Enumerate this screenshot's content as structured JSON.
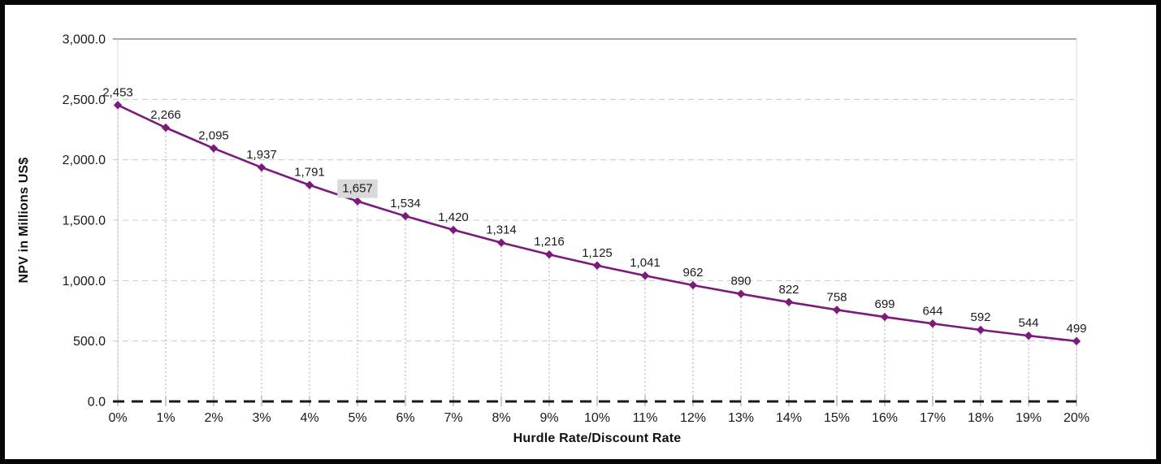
{
  "chart_data": {
    "type": "line",
    "title": "",
    "xlabel": "Hurdle Rate/Discount Rate",
    "ylabel": "NPV in Millions US$",
    "categories": [
      "0%",
      "1%",
      "2%",
      "3%",
      "4%",
      "5%",
      "6%",
      "7%",
      "8%",
      "9%",
      "10%",
      "11%",
      "12%",
      "13%",
      "14%",
      "15%",
      "16%",
      "17%",
      "18%",
      "19%",
      "20%"
    ],
    "values": [
      2453,
      2266,
      2095,
      1937,
      1791,
      1657,
      1534,
      1420,
      1314,
      1216,
      1125,
      1041,
      962,
      890,
      822,
      758,
      699,
      644,
      592,
      544,
      499
    ],
    "point_labels": [
      "2,453",
      "2,266",
      "2,095",
      "1,937",
      "1,791",
      "1,657",
      "1,534",
      "1,420",
      "1,314",
      "1,216",
      "1,125",
      "1,041",
      "962",
      "890",
      "822",
      "758",
      "699",
      "644",
      "592",
      "544",
      "499"
    ],
    "highlighted_point_index": 5,
    "ylim": [
      0,
      3000
    ],
    "y_ticks": [
      {
        "value": 0,
        "label": "0.0"
      },
      {
        "value": 500,
        "label": "500.0"
      },
      {
        "value": 1000,
        "label": "1,000.0"
      },
      {
        "value": 1500,
        "label": "1,500.0"
      },
      {
        "value": 2000,
        "label": "2,000.0"
      },
      {
        "value": 2500,
        "label": "2,500.0"
      },
      {
        "value": 3000,
        "label": "3,000.0"
      }
    ],
    "grid": {
      "horizontal": "dashed",
      "vertical": "drop-lines-to-axis",
      "legend": "none"
    },
    "colors": {
      "line": "#7B1A7C",
      "marker": "#7B1A7C",
      "data_label_text": "#1A1A1A",
      "highlight_bg": "#D9D9D9",
      "gridline": "#C8C8C8",
      "top_gridline": "#8A8A8A",
      "drop_line": "#ABABAB",
      "axis_tick": "#999999",
      "zero_line": "#1A1A1A",
      "plot_edge": "#D8D8D8",
      "frame": "#060606"
    }
  }
}
